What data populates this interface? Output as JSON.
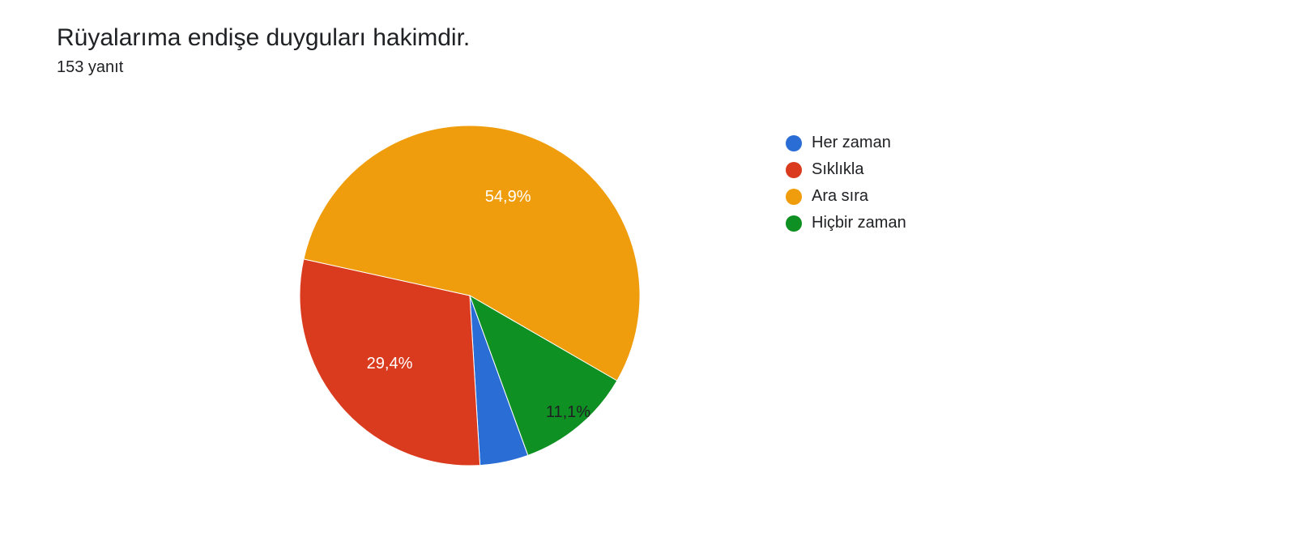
{
  "title": "Rüyalarıma endişe duyguları hakimdir.",
  "subtitle": "153 yanıt",
  "chart": {
    "type": "pie",
    "background_color": "#ffffff",
    "radius": 210,
    "start_angle_deg": 70,
    "label_fontsize": 20,
    "label_color_light": "#ffffff",
    "label_color_dark": "#202124",
    "slices": [
      {
        "key": "her_zaman",
        "label": "Her zaman",
        "value": 4.6,
        "display": "",
        "color": "#2a6dd4",
        "show_label": false,
        "label_radius_factor": 0.68
      },
      {
        "key": "siklikla",
        "label": "Sıklıkla",
        "value": 29.4,
        "display": "29,4%",
        "color": "#da3b1f",
        "show_label": true,
        "label_radius_factor": 0.62
      },
      {
        "key": "ara_sira",
        "label": "Ara sıra",
        "value": 54.9,
        "display": "54,9%",
        "color": "#ef9d0c",
        "show_label": true,
        "label_radius_factor": 0.62
      },
      {
        "key": "hicbir_zaman",
        "label": "Hiçbir zaman",
        "value": 11.1,
        "display": "11,1%",
        "color": "#0f9022",
        "show_label": true,
        "label_radius_factor": 0.9,
        "label_dark": true
      }
    ]
  },
  "legend": {
    "fontsize": 20,
    "dot_size": 20
  }
}
